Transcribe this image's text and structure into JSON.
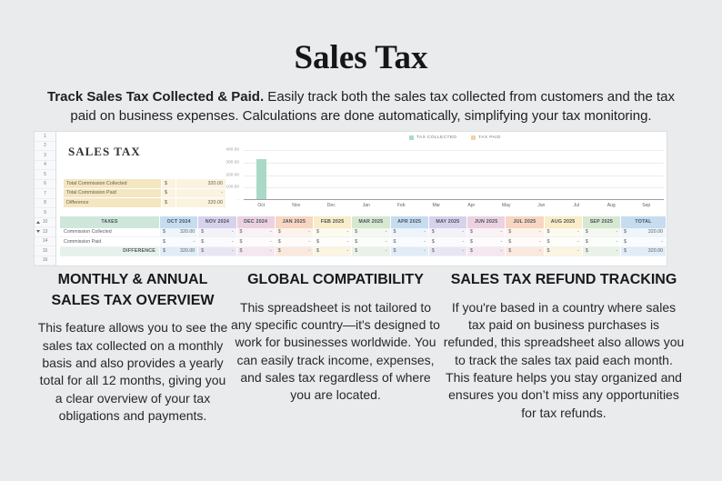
{
  "header": {
    "title": "Sales Tax",
    "intro_lead": "Track Sales Tax Collected & Paid.",
    "intro_rest": " Easily track both the sales tax collected from customers and the tax paid on business expenses. Calculations are done automatically, simplifying your tax monitoring."
  },
  "spreadsheet": {
    "sheet_title": "SALES TAX",
    "currency_symbol": "$",
    "row_numbers": [
      {
        "n": "1"
      },
      {
        "n": "2"
      },
      {
        "n": "3"
      },
      {
        "n": "4"
      },
      {
        "n": "5"
      },
      {
        "n": "6"
      },
      {
        "n": "7"
      },
      {
        "n": "8"
      },
      {
        "n": "9"
      },
      {
        "n": "10",
        "marker": "up"
      },
      {
        "n": "13",
        "marker": "down"
      },
      {
        "n": "14"
      },
      {
        "n": "15"
      },
      {
        "n": "16"
      }
    ],
    "summary": [
      {
        "label": "Total Commission Collected",
        "currency": "$",
        "value": "320.00"
      },
      {
        "label": "Total Commission Paid",
        "currency": "$",
        "value": "-"
      },
      {
        "label": "Difference",
        "currency": "$",
        "value": "320.00"
      }
    ],
    "table": {
      "header": [
        "TAXES",
        "OCT 2024",
        "NOV 2024",
        "DEC 2024",
        "JAN 2025",
        "FEB 2025",
        "MAR 2025",
        "APR 2025",
        "MAY 2025",
        "JUN 2025",
        "JUL 2025",
        "AUG 2025",
        "SEP 2025",
        "TOTAL"
      ],
      "rows": [
        {
          "label": "Commission Collected",
          "values": [
            "320.00",
            "-",
            "-",
            "-",
            "-",
            "-",
            "-",
            "-",
            "-",
            "-",
            "-",
            "-"
          ],
          "total": "320.00"
        },
        {
          "label": "Commission Paid",
          "values": [
            "-",
            "-",
            "-",
            "-",
            "-",
            "-",
            "-",
            "-",
            "-",
            "-",
            "-",
            "-"
          ],
          "total": "-"
        },
        {
          "label": "DIFFERENCE",
          "values": [
            "320.00",
            "-",
            "-",
            "-",
            "-",
            "-",
            "-",
            "-",
            "-",
            "-",
            "-",
            "-"
          ],
          "total": "320.00"
        }
      ]
    },
    "palette": {
      "taxes_header": "#cfe7db",
      "months": [
        "#c6dcf0",
        "#d7d2eb",
        "#ecd2e1",
        "#f7d6c2",
        "#f8edc8",
        "#d7e8d1",
        "#c6dcf0",
        "#d7d2eb",
        "#ecd2e1",
        "#f7d6c2",
        "#f8edc8",
        "#d7e8d1"
      ],
      "total": "#c6dcf0",
      "summary_label_bg": "#f4e6c1",
      "summary_value_bg": "#faf3e0"
    }
  },
  "chart_data": {
    "type": "bar",
    "categories": [
      "Oct",
      "Nov",
      "Dec",
      "Jan",
      "Feb",
      "Mar",
      "Apr",
      "May",
      "Jun",
      "Jul",
      "Aug",
      "Sep"
    ],
    "series": [
      {
        "name": "TAX COLLECTED",
        "color": "#abd9c8",
        "values": [
          320,
          0,
          0,
          0,
          0,
          0,
          0,
          0,
          0,
          0,
          0,
          0
        ]
      },
      {
        "name": "TAX PAID",
        "color": "#f4d1ae",
        "values": [
          0,
          0,
          0,
          0,
          0,
          0,
          0,
          0,
          0,
          0,
          0,
          0
        ]
      }
    ],
    "title": "",
    "xlabel": "",
    "ylabel": "",
    "ylim": [
      0,
      400
    ],
    "yticks": [
      {
        "v": 400,
        "label": "400.00"
      },
      {
        "v": 300,
        "label": "300.00"
      },
      {
        "v": 200,
        "label": "200.00"
      },
      {
        "v": 100,
        "label": "100.00"
      },
      {
        "v": 0,
        "label": "-"
      }
    ],
    "grid": true,
    "legend_position": "top-right"
  },
  "features": [
    {
      "title": "MONTHLY & ANNUAL SALES TAX OVERVIEW",
      "body": "This feature allows you to see the sales tax collected on a monthly basis and also provides a yearly total for all 12 months, giving you a clear overview of your tax obligations and payments."
    },
    {
      "title": "GLOBAL COMPATIBILITY",
      "body": "This spreadsheet is not tailored to any specific country—it's designed to work for businesses worldwide. You can easily track income, expenses, and sales tax regardless of where you are located."
    },
    {
      "title": "SALES TAX REFUND TRACKING",
      "body": "If you're based in a country where sales tax paid on business purchases is refunded, this spreadsheet also allows you to track the sales tax paid each month. This feature helps you stay organized and ensures you don’t miss any opportunities for tax refunds."
    }
  ]
}
